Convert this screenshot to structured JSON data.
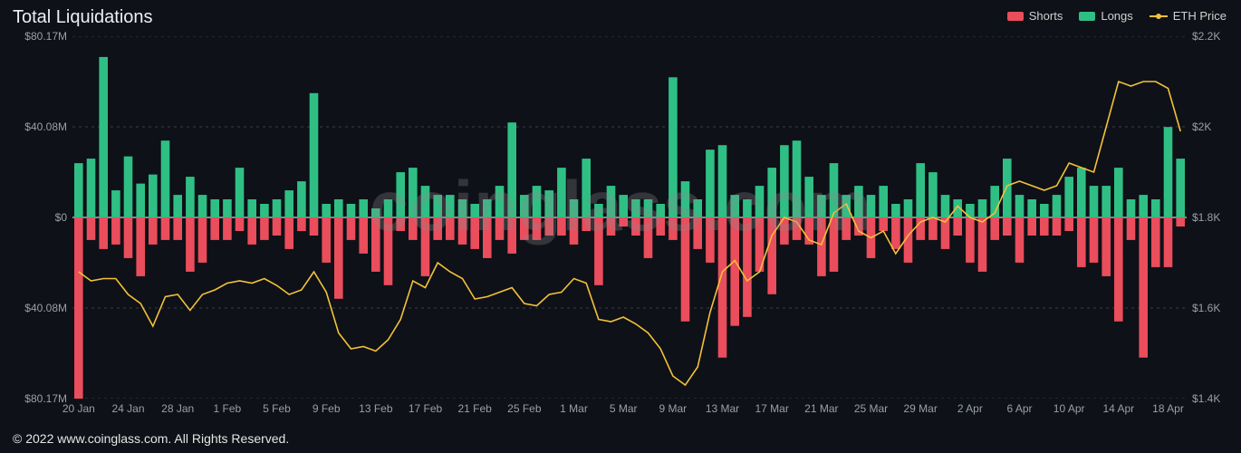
{
  "title": "Total Liquidations",
  "watermark": "coinglass.com",
  "footer": "© 2022 www.coinglass.com. All Rights Reserved.",
  "legend": {
    "shorts": {
      "label": "Shorts",
      "color": "#ea4d5c"
    },
    "longs": {
      "label": "Longs",
      "color": "#2fbf85"
    },
    "price": {
      "label": "ETH Price",
      "color": "#f3c13a"
    }
  },
  "chart": {
    "type": "bar+line",
    "background_color": "#0e1117",
    "grid_color": "#3a3f46",
    "zero_line_color": "#cfcfcf",
    "text_color": "#9aa0a6",
    "left_axis": {
      "min": -80.17,
      "max": 80.17,
      "unit": "M$",
      "ticks": [
        {
          "v": 80.17,
          "label": "$80.17M"
        },
        {
          "v": 40.08,
          "label": "$40.08M"
        },
        {
          "v": 0,
          "label": "$0"
        },
        {
          "v": -40.08,
          "label": "$40.08M"
        },
        {
          "v": -80.17,
          "label": "$80.17M"
        }
      ]
    },
    "right_axis": {
      "min": 1400,
      "max": 2200,
      "unit": "$",
      "ticks": [
        {
          "v": 2200,
          "label": "$2.2K"
        },
        {
          "v": 2000,
          "label": "$2K"
        },
        {
          "v": 1800,
          "label": "$1.8K"
        },
        {
          "v": 1600,
          "label": "$1.6K"
        },
        {
          "v": 1400,
          "label": "$1.4K"
        }
      ]
    },
    "x_labels": [
      "20 Jan",
      "24 Jan",
      "28 Jan",
      "1 Feb",
      "5 Feb",
      "9 Feb",
      "13 Feb",
      "17 Feb",
      "21 Feb",
      "25 Feb",
      "1 Mar",
      "5 Mar",
      "9 Mar",
      "13 Mar",
      "17 Mar",
      "21 Mar",
      "25 Mar",
      "29 Mar",
      "2 Apr",
      "6 Apr",
      "10 Apr",
      "14 Apr",
      "18 Apr"
    ],
    "bar_width_ratio": 0.7,
    "colors": {
      "longs": "#2fbf85",
      "shorts": "#ea4d5c",
      "price_line": "#f3c13a"
    },
    "data": [
      {
        "d": "20 Jan",
        "longs": 24,
        "shorts": 82,
        "price": 1680
      },
      {
        "d": "21 Jan",
        "longs": 26,
        "shorts": 10,
        "price": 1660
      },
      {
        "d": "22 Jan",
        "longs": 71,
        "shorts": 14,
        "price": 1665
      },
      {
        "d": "23 Jan",
        "longs": 12,
        "shorts": 12,
        "price": 1665
      },
      {
        "d": "24 Jan",
        "longs": 27,
        "shorts": 18,
        "price": 1630
      },
      {
        "d": "25 Jan",
        "longs": 15,
        "shorts": 26,
        "price": 1610
      },
      {
        "d": "26 Jan",
        "longs": 19,
        "shorts": 12,
        "price": 1560
      },
      {
        "d": "27 Jan",
        "longs": 34,
        "shorts": 10,
        "price": 1625
      },
      {
        "d": "28 Jan",
        "longs": 10,
        "shorts": 10,
        "price": 1630
      },
      {
        "d": "29 Jan",
        "longs": 18,
        "shorts": 24,
        "price": 1595
      },
      {
        "d": "30 Jan",
        "longs": 10,
        "shorts": 20,
        "price": 1630
      },
      {
        "d": "31 Jan",
        "longs": 8,
        "shorts": 10,
        "price": 1640
      },
      {
        "d": "1 Feb",
        "longs": 8,
        "shorts": 10,
        "price": 1655
      },
      {
        "d": "2 Feb",
        "longs": 22,
        "shorts": 6,
        "price": 1660
      },
      {
        "d": "3 Feb",
        "longs": 8,
        "shorts": 12,
        "price": 1655
      },
      {
        "d": "4 Feb",
        "longs": 6,
        "shorts": 10,
        "price": 1665
      },
      {
        "d": "5 Feb",
        "longs": 8,
        "shorts": 8,
        "price": 1650
      },
      {
        "d": "6 Feb",
        "longs": 12,
        "shorts": 14,
        "price": 1630
      },
      {
        "d": "7 Feb",
        "longs": 16,
        "shorts": 6,
        "price": 1640
      },
      {
        "d": "8 Feb",
        "longs": 55,
        "shorts": 8,
        "price": 1680
      },
      {
        "d": "9 Feb",
        "longs": 6,
        "shorts": 20,
        "price": 1635
      },
      {
        "d": "10 Feb",
        "longs": 8,
        "shorts": 36,
        "price": 1545
      },
      {
        "d": "11 Feb",
        "longs": 6,
        "shorts": 10,
        "price": 1510
      },
      {
        "d": "12 Feb",
        "longs": 8,
        "shorts": 16,
        "price": 1515
      },
      {
        "d": "13 Feb",
        "longs": 4,
        "shorts": 24,
        "price": 1505
      },
      {
        "d": "14 Feb",
        "longs": 8,
        "shorts": 30,
        "price": 1530
      },
      {
        "d": "15 Feb",
        "longs": 20,
        "shorts": 6,
        "price": 1575
      },
      {
        "d": "16 Feb",
        "longs": 22,
        "shorts": 10,
        "price": 1660
      },
      {
        "d": "17 Feb",
        "longs": 14,
        "shorts": 26,
        "price": 1645
      },
      {
        "d": "18 Feb",
        "longs": 10,
        "shorts": 10,
        "price": 1700
      },
      {
        "d": "19 Feb",
        "longs": 10,
        "shorts": 10,
        "price": 1680
      },
      {
        "d": "20 Feb",
        "longs": 8,
        "shorts": 12,
        "price": 1665
      },
      {
        "d": "21 Feb",
        "longs": 6,
        "shorts": 14,
        "price": 1620
      },
      {
        "d": "22 Feb",
        "longs": 8,
        "shorts": 18,
        "price": 1625
      },
      {
        "d": "23 Feb",
        "longs": 14,
        "shorts": 10,
        "price": 1635
      },
      {
        "d": "24 Feb",
        "longs": 42,
        "shorts": 16,
        "price": 1645
      },
      {
        "d": "25 Feb",
        "longs": 10,
        "shorts": 10,
        "price": 1610
      },
      {
        "d": "26 Feb",
        "longs": 14,
        "shorts": 10,
        "price": 1605
      },
      {
        "d": "27 Feb",
        "longs": 12,
        "shorts": 8,
        "price": 1630
      },
      {
        "d": "28 Feb",
        "longs": 22,
        "shorts": 8,
        "price": 1635
      },
      {
        "d": "1 Mar",
        "longs": 8,
        "shorts": 12,
        "price": 1665
      },
      {
        "d": "2 Mar",
        "longs": 26,
        "shorts": 6,
        "price": 1655
      },
      {
        "d": "3 Mar",
        "longs": 6,
        "shorts": 30,
        "price": 1575
      },
      {
        "d": "4 Mar",
        "longs": 14,
        "shorts": 8,
        "price": 1570
      },
      {
        "d": "5 Mar",
        "longs": 10,
        "shorts": 4,
        "price": 1580
      },
      {
        "d": "6 Mar",
        "longs": 8,
        "shorts": 8,
        "price": 1565
      },
      {
        "d": "7 Mar",
        "longs": 8,
        "shorts": 18,
        "price": 1545
      },
      {
        "d": "8 Mar",
        "longs": 6,
        "shorts": 8,
        "price": 1510
      },
      {
        "d": "9 Mar",
        "longs": 62,
        "shorts": 10,
        "price": 1450
      },
      {
        "d": "10 Mar",
        "longs": 16,
        "shorts": 46,
        "price": 1430
      },
      {
        "d": "11 Mar",
        "longs": 8,
        "shorts": 14,
        "price": 1470
      },
      {
        "d": "12 Mar",
        "longs": 30,
        "shorts": 20,
        "price": 1590
      },
      {
        "d": "13 Mar",
        "longs": 32,
        "shorts": 62,
        "price": 1680
      },
      {
        "d": "14 Mar",
        "longs": 10,
        "shorts": 48,
        "price": 1705
      },
      {
        "d": "15 Mar",
        "longs": 8,
        "shorts": 44,
        "price": 1660
      },
      {
        "d": "16 Mar",
        "longs": 14,
        "shorts": 24,
        "price": 1680
      },
      {
        "d": "17 Mar",
        "longs": 22,
        "shorts": 34,
        "price": 1760
      },
      {
        "d": "18 Mar",
        "longs": 32,
        "shorts": 12,
        "price": 1800
      },
      {
        "d": "19 Mar",
        "longs": 34,
        "shorts": 10,
        "price": 1790
      },
      {
        "d": "20 Mar",
        "longs": 18,
        "shorts": 12,
        "price": 1750
      },
      {
        "d": "21 Mar",
        "longs": 10,
        "shorts": 26,
        "price": 1740
      },
      {
        "d": "22 Mar",
        "longs": 24,
        "shorts": 24,
        "price": 1810
      },
      {
        "d": "23 Mar",
        "longs": 10,
        "shorts": 10,
        "price": 1830
      },
      {
        "d": "24 Mar",
        "longs": 14,
        "shorts": 8,
        "price": 1770
      },
      {
        "d": "25 Mar",
        "longs": 10,
        "shorts": 18,
        "price": 1755
      },
      {
        "d": "26 Mar",
        "longs": 14,
        "shorts": 6,
        "price": 1770
      },
      {
        "d": "27 Mar",
        "longs": 6,
        "shorts": 14,
        "price": 1720
      },
      {
        "d": "28 Mar",
        "longs": 8,
        "shorts": 20,
        "price": 1760
      },
      {
        "d": "29 Mar",
        "longs": 24,
        "shorts": 10,
        "price": 1790
      },
      {
        "d": "30 Mar",
        "longs": 20,
        "shorts": 10,
        "price": 1800
      },
      {
        "d": "31 Mar",
        "longs": 10,
        "shorts": 14,
        "price": 1790
      },
      {
        "d": "1 Apr",
        "longs": 8,
        "shorts": 8,
        "price": 1825
      },
      {
        "d": "2 Apr",
        "longs": 6,
        "shorts": 20,
        "price": 1800
      },
      {
        "d": "3 Apr",
        "longs": 8,
        "shorts": 24,
        "price": 1790
      },
      {
        "d": "4 Apr",
        "longs": 14,
        "shorts": 10,
        "price": 1810
      },
      {
        "d": "5 Apr",
        "longs": 26,
        "shorts": 8,
        "price": 1870
      },
      {
        "d": "6 Apr",
        "longs": 10,
        "shorts": 20,
        "price": 1880
      },
      {
        "d": "7 Apr",
        "longs": 8,
        "shorts": 8,
        "price": 1870
      },
      {
        "d": "8 Apr",
        "longs": 6,
        "shorts": 8,
        "price": 1860
      },
      {
        "d": "9 Apr",
        "longs": 10,
        "shorts": 8,
        "price": 1870
      },
      {
        "d": "10 Apr",
        "longs": 18,
        "shorts": 6,
        "price": 1920
      },
      {
        "d": "11 Apr",
        "longs": 22,
        "shorts": 22,
        "price": 1910
      },
      {
        "d": "12 Apr",
        "longs": 14,
        "shorts": 20,
        "price": 1900
      },
      {
        "d": "13 Apr",
        "longs": 14,
        "shorts": 26,
        "price": 2000
      },
      {
        "d": "14 Apr",
        "longs": 22,
        "shorts": 46,
        "price": 2100
      },
      {
        "d": "15 Apr",
        "longs": 8,
        "shorts": 10,
        "price": 2090
      },
      {
        "d": "16 Apr",
        "longs": 10,
        "shorts": 62,
        "price": 2100
      },
      {
        "d": "17 Apr",
        "longs": 8,
        "shorts": 22,
        "price": 2100
      },
      {
        "d": "18 Apr",
        "longs": 40,
        "shorts": 22,
        "price": 2085
      },
      {
        "d": "19 Apr",
        "longs": 26,
        "shorts": 4,
        "price": 1990
      }
    ]
  }
}
